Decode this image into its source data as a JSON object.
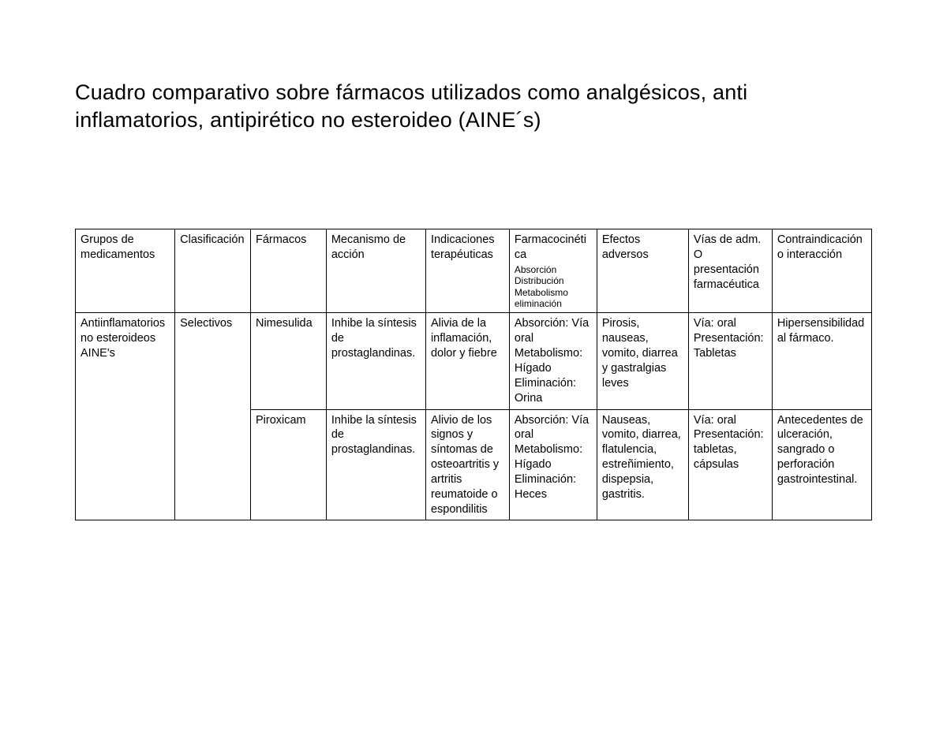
{
  "title": "Cuadro comparativo sobre fármacos utilizados como analgésicos, anti inflamatorios, antipirético no esteroideo (AINE´s)",
  "table": {
    "type": "table",
    "border_color": "#000000",
    "background_color": "#ffffff",
    "text_color": "#000000",
    "header_fontsize": 14.5,
    "header_sub_fontsize": 12,
    "body_fontsize": 14.5,
    "columns": [
      {
        "label": "Grupos de medicamentos",
        "width_pct": 12.5
      },
      {
        "label": "Clasificación",
        "width_pct": 9.5
      },
      {
        "label": "Fármacos",
        "width_pct": 9.5
      },
      {
        "label": "Mecanismo de acción",
        "width_pct": 12.5
      },
      {
        "label": "Indicaciones terapéuticas",
        "width_pct": 10.5
      },
      {
        "label": "Farmacocinética",
        "sub": "Absorción Distribución Metabolismo eliminación",
        "width_pct": 11.0
      },
      {
        "label": "Efectos adversos",
        "width_pct": 11.5
      },
      {
        "label": "Vías de adm. O presentación farmacéutica",
        "width_pct": 10.5
      },
      {
        "label": "Contraindicación o interacción",
        "width_pct": 12.5
      }
    ],
    "group": {
      "grupo": "Antiinflamatorios no esteroideos AINE's",
      "clasificacion": "Selectivos",
      "rows": [
        {
          "farmaco": "Nimesulida",
          "mecanismo": "Inhibe  la síntesis de prostaglandinas.",
          "indicaciones": "Alivia de la inflamación, dolor y fiebre",
          "farmacocinetica": "Absorción: Vía oral Metabolismo: Hígado Eliminación: Orina",
          "efectos": "Pirosis, nauseas, vomito, diarrea y gastralgias leves",
          "vias": "Vía: oral Presentación: Tabletas",
          "contra": "Hipersensibilidad al fármaco."
        },
        {
          "farmaco": "Piroxicam",
          "mecanismo": "Inhibe la síntesis de prostaglandinas.",
          "indicaciones": "Alivio de los signos y síntomas de osteoartritis y artritis reumatoide o espondilitis",
          "farmacocinetica": "Absorción: Vía oral Metabolismo: Hígado Eliminación: Heces",
          "efectos": "Nauseas, vomito, diarrea, flatulencia, estreñimiento, dispepsia, gastritis.",
          "vias": "Vía: oral\n\nPresentación: tabletas, cápsulas",
          "contra": "Antecedentes de ulceración, sangrado o perforación gastrointestinal."
        }
      ]
    }
  }
}
